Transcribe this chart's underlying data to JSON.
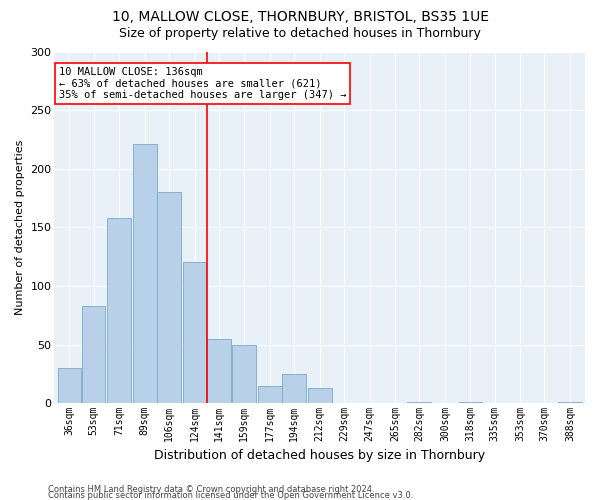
{
  "title1": "10, MALLOW CLOSE, THORNBURY, BRISTOL, BS35 1UE",
  "title2": "Size of property relative to detached houses in Thornbury",
  "xlabel": "Distribution of detached houses by size in Thornbury",
  "ylabel": "Number of detached properties",
  "bin_labels": [
    "36sqm",
    "53sqm",
    "71sqm",
    "89sqm",
    "106sqm",
    "124sqm",
    "141sqm",
    "159sqm",
    "177sqm",
    "194sqm",
    "212sqm",
    "229sqm",
    "247sqm",
    "265sqm",
    "282sqm",
    "300sqm",
    "318sqm",
    "335sqm",
    "353sqm",
    "370sqm",
    "388sqm"
  ],
  "bar_values": [
    30,
    83,
    158,
    221,
    180,
    120,
    55,
    50,
    15,
    25,
    13,
    0,
    0,
    0,
    1,
    0,
    1,
    0,
    0,
    0,
    1
  ],
  "bar_color": "#b8d0e8",
  "bar_edge_color": "#7aaac8",
  "bin_edges": [
    36,
    53,
    71,
    89,
    106,
    124,
    141,
    159,
    177,
    194,
    212,
    229,
    247,
    265,
    282,
    300,
    318,
    335,
    353,
    370,
    388
  ],
  "bin_width": 17,
  "annotation_text": "10 MALLOW CLOSE: 136sqm\n← 63% of detached houses are smaller (621)\n35% of semi-detached houses are larger (347) →",
  "footer1": "Contains HM Land Registry data © Crown copyright and database right 2024.",
  "footer2": "Contains public sector information licensed under the Open Government Licence v3.0.",
  "ylim": [
    0,
    300
  ],
  "yticks": [
    0,
    50,
    100,
    150,
    200,
    250,
    300
  ],
  "background_color": "#e8f0f8",
  "title1_fontsize": 10,
  "title2_fontsize": 9,
  "ylabel_fontsize": 8,
  "xlabel_fontsize": 9,
  "tick_fontsize": 7,
  "annotation_fontsize": 7.5
}
